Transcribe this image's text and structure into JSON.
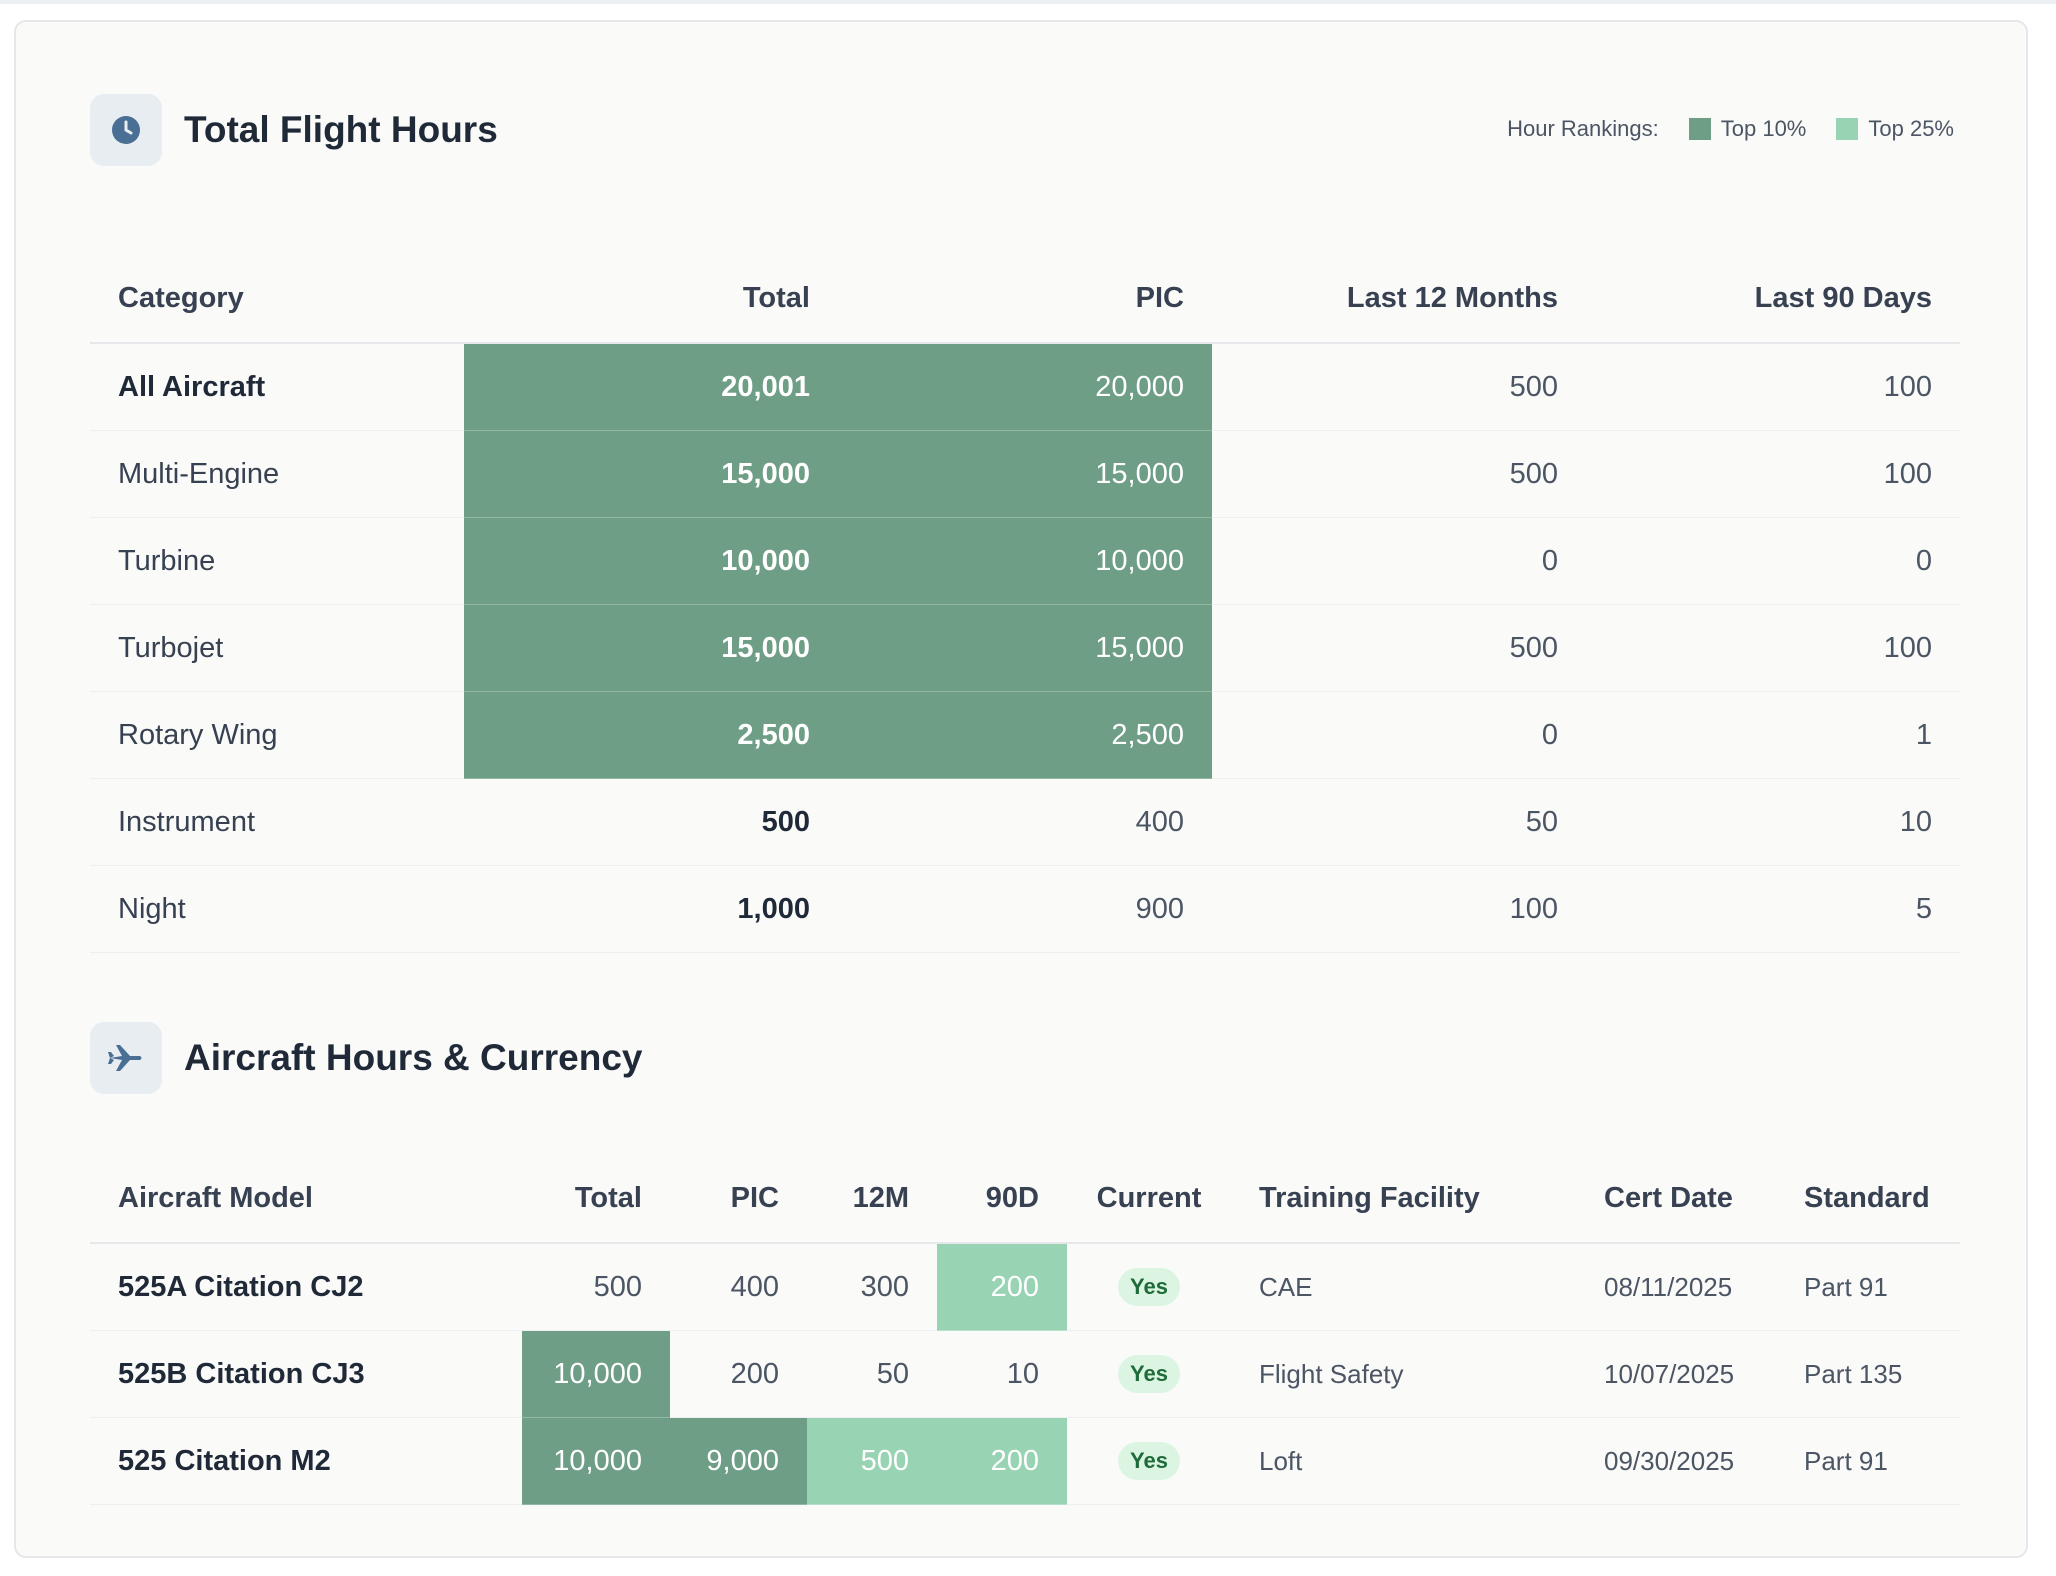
{
  "section1": {
    "title": "Total Flight Hours",
    "icon": "clock-icon",
    "legend": {
      "label": "Hour Rankings:",
      "top10": "Top 10%",
      "top25": "Top 25%",
      "top10_color": "#6f9e87",
      "top25_color": "#98d3b4"
    },
    "columns": [
      "Category",
      "Total",
      "PIC",
      "Last 12 Months",
      "Last 90 Days"
    ],
    "rows": [
      {
        "category": "All Aircraft",
        "total": "20,001",
        "pic": "20,000",
        "m12": "500",
        "d90": "100",
        "rank_total": "top10",
        "rank_pic": "top10"
      },
      {
        "category": "Multi-Engine",
        "total": "15,000",
        "pic": "15,000",
        "m12": "500",
        "d90": "100",
        "rank_total": "top10",
        "rank_pic": "top10"
      },
      {
        "category": "Turbine",
        "total": "10,000",
        "pic": "10,000",
        "m12": "0",
        "d90": "0",
        "rank_total": "top10",
        "rank_pic": "top10"
      },
      {
        "category": "Turbojet",
        "total": "15,000",
        "pic": "15,000",
        "m12": "500",
        "d90": "100",
        "rank_total": "top10",
        "rank_pic": "top10"
      },
      {
        "category": "Rotary Wing",
        "total": "2,500",
        "pic": "2,500",
        "m12": "0",
        "d90": "1",
        "rank_total": "top10",
        "rank_pic": "top10"
      },
      {
        "category": "Instrument",
        "total": "500",
        "pic": "400",
        "m12": "50",
        "d90": "10"
      },
      {
        "category": "Night",
        "total": "1,000",
        "pic": "900",
        "m12": "100",
        "d90": "5"
      }
    ]
  },
  "section2": {
    "title": "Aircraft Hours & Currency",
    "icon": "airplane-icon",
    "columns": [
      "Aircraft Model",
      "Total",
      "PIC",
      "12M",
      "90D",
      "Current",
      "Training Facility",
      "Cert Date",
      "Standard"
    ],
    "rows": [
      {
        "model": "525A Citation CJ2",
        "total": "500",
        "pic": "400",
        "m12": "300",
        "d90": "200",
        "current": "Yes",
        "facility": "CAE",
        "cert_date": "08/11/2025",
        "standard": "Part 91"
      },
      {
        "model": "525B Citation CJ3",
        "total": "10,000",
        "pic": "200",
        "m12": "50",
        "d90": "10",
        "current": "Yes",
        "facility": "Flight Safety",
        "cert_date": "10/07/2025",
        "standard": "Part 135"
      },
      {
        "model": "525 Citation M2",
        "total": "10,000",
        "pic": "9,000",
        "m12": "500",
        "d90": "200",
        "current": "Yes",
        "facility": "Loft",
        "cert_date": "09/30/2025",
        "standard": "Part 91"
      }
    ]
  }
}
